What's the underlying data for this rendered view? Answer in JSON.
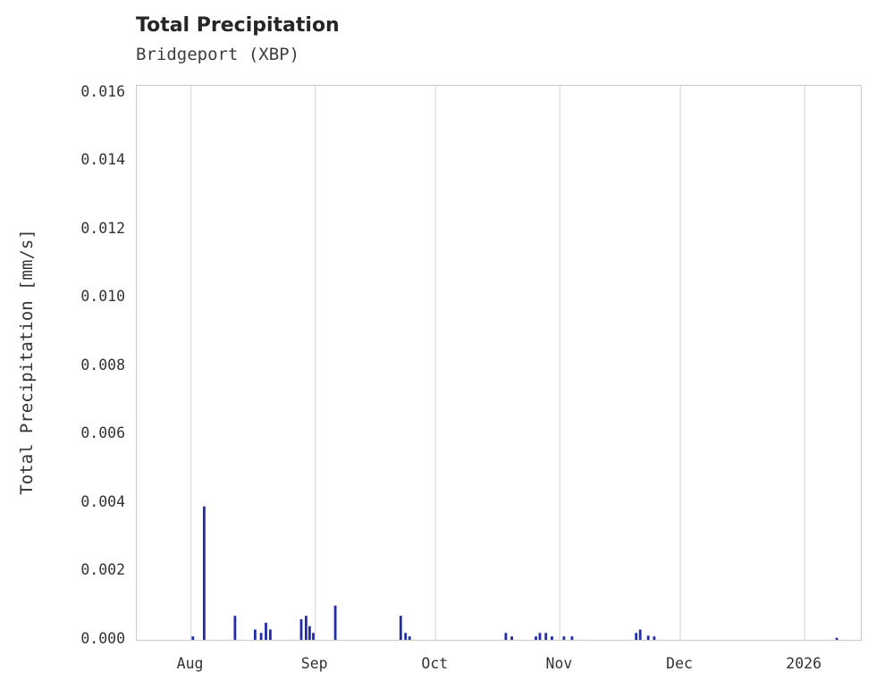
{
  "chart": {
    "title": "Total Precipitation",
    "subtitle": "Bridgeport (XBP)",
    "ylabel": "Total Precipitation [mm/s]"
  },
  "chart_data": {
    "type": "bar",
    "title": "Total Precipitation",
    "subtitle": "Bridgeport (XBP)",
    "xlabel": "",
    "ylabel": "Total Precipitation [mm/s]",
    "ylim": [
      0,
      0.0162
    ],
    "x_range_days": [
      -13.5,
      167
    ],
    "grid": "vertical-only",
    "bar_color": "#1f2da8",
    "grid_color": "#dadada",
    "x_ticks": [
      {
        "label": "Aug",
        "day": 0
      },
      {
        "label": "Sep",
        "day": 31
      },
      {
        "label": "Oct",
        "day": 61
      },
      {
        "label": "Nov",
        "day": 92
      },
      {
        "label": "Dec",
        "day": 122
      },
      {
        "label": "2026",
        "day": 153
      }
    ],
    "y_ticks": [
      {
        "label": "0.000",
        "value": 0.0
      },
      {
        "label": "0.002",
        "value": 0.002
      },
      {
        "label": "0.004",
        "value": 0.004
      },
      {
        "label": "0.006",
        "value": 0.006
      },
      {
        "label": "0.008",
        "value": 0.008
      },
      {
        "label": "0.010",
        "value": 0.01
      },
      {
        "label": "0.012",
        "value": 0.012
      },
      {
        "label": "0.014",
        "value": 0.014
      },
      {
        "label": "0.016",
        "value": 0.016
      }
    ],
    "points": [
      {
        "date": "Aug 01",
        "day": 0.5,
        "value": 0.0001
      },
      {
        "date": "Aug 04",
        "day": 3.3,
        "value": 0.0039
      },
      {
        "date": "Aug 12",
        "day": 11.0,
        "value": 0.0007
      },
      {
        "date": "Aug 17",
        "day": 16.0,
        "value": 0.0003
      },
      {
        "date": "Aug 18",
        "day": 17.5,
        "value": 0.0002
      },
      {
        "date": "Aug 19",
        "day": 18.7,
        "value": 0.0005
      },
      {
        "date": "Aug 20",
        "day": 19.8,
        "value": 0.0003
      },
      {
        "date": "Aug 28",
        "day": 27.5,
        "value": 0.0006
      },
      {
        "date": "Aug 29",
        "day": 28.7,
        "value": 0.0007
      },
      {
        "date": "Aug 30",
        "day": 29.6,
        "value": 0.0004
      },
      {
        "date": "Aug 31",
        "day": 30.5,
        "value": 0.0002
      },
      {
        "date": "Sep 06",
        "day": 36.0,
        "value": 0.001
      },
      {
        "date": "Sep 22",
        "day": 52.3,
        "value": 0.0007
      },
      {
        "date": "Sep 23",
        "day": 53.5,
        "value": 0.0002
      },
      {
        "date": "Sep 24",
        "day": 54.5,
        "value": 0.0001
      },
      {
        "date": "Oct 18",
        "day": 78.5,
        "value": 0.0002
      },
      {
        "date": "Oct 20",
        "day": 80.0,
        "value": 0.0001
      },
      {
        "date": "Oct 26",
        "day": 86.0,
        "value": 0.0001
      },
      {
        "date": "Oct 27",
        "day": 87.0,
        "value": 0.0002
      },
      {
        "date": "Oct 28",
        "day": 88.5,
        "value": 0.0002
      },
      {
        "date": "Oct 30",
        "day": 90.0,
        "value": 0.0001
      },
      {
        "date": "Nov 02",
        "day": 93.0,
        "value": 0.0001
      },
      {
        "date": "Nov 04",
        "day": 95.0,
        "value": 0.0001
      },
      {
        "date": "Nov 20",
        "day": 111.0,
        "value": 0.0002
      },
      {
        "date": "Nov 21",
        "day": 112.0,
        "value": 0.0003
      },
      {
        "date": "Nov 23",
        "day": 114.0,
        "value": 0.00012
      },
      {
        "date": "Nov 24",
        "day": 115.5,
        "value": 0.0001
      },
      {
        "date": "Jan 09",
        "day": 161.0,
        "value": 6e-05
      }
    ]
  }
}
